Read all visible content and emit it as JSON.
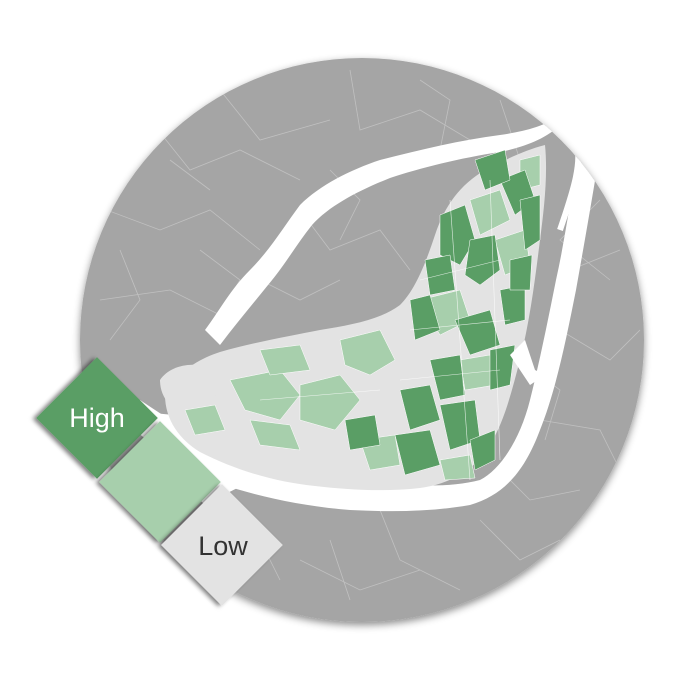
{
  "legend": {
    "high_label": "High",
    "low_label": "Low"
  },
  "colors": {
    "background": "#ffffff",
    "surrounding_land": "#a5a5a5",
    "boundary_lines": "#c4c4c4",
    "water": "#ffffff",
    "no_data_land": "#e3e3e3",
    "class_high": "#5a9e65",
    "class_medium": "#a7cfac",
    "class_low": "#e3e3e3",
    "legend_text_high": "#ffffff",
    "legend_text_low": "#333333"
  },
  "map": {
    "type": "choropleth",
    "classes": [
      "high",
      "medium",
      "low"
    ],
    "mask": "circle"
  }
}
